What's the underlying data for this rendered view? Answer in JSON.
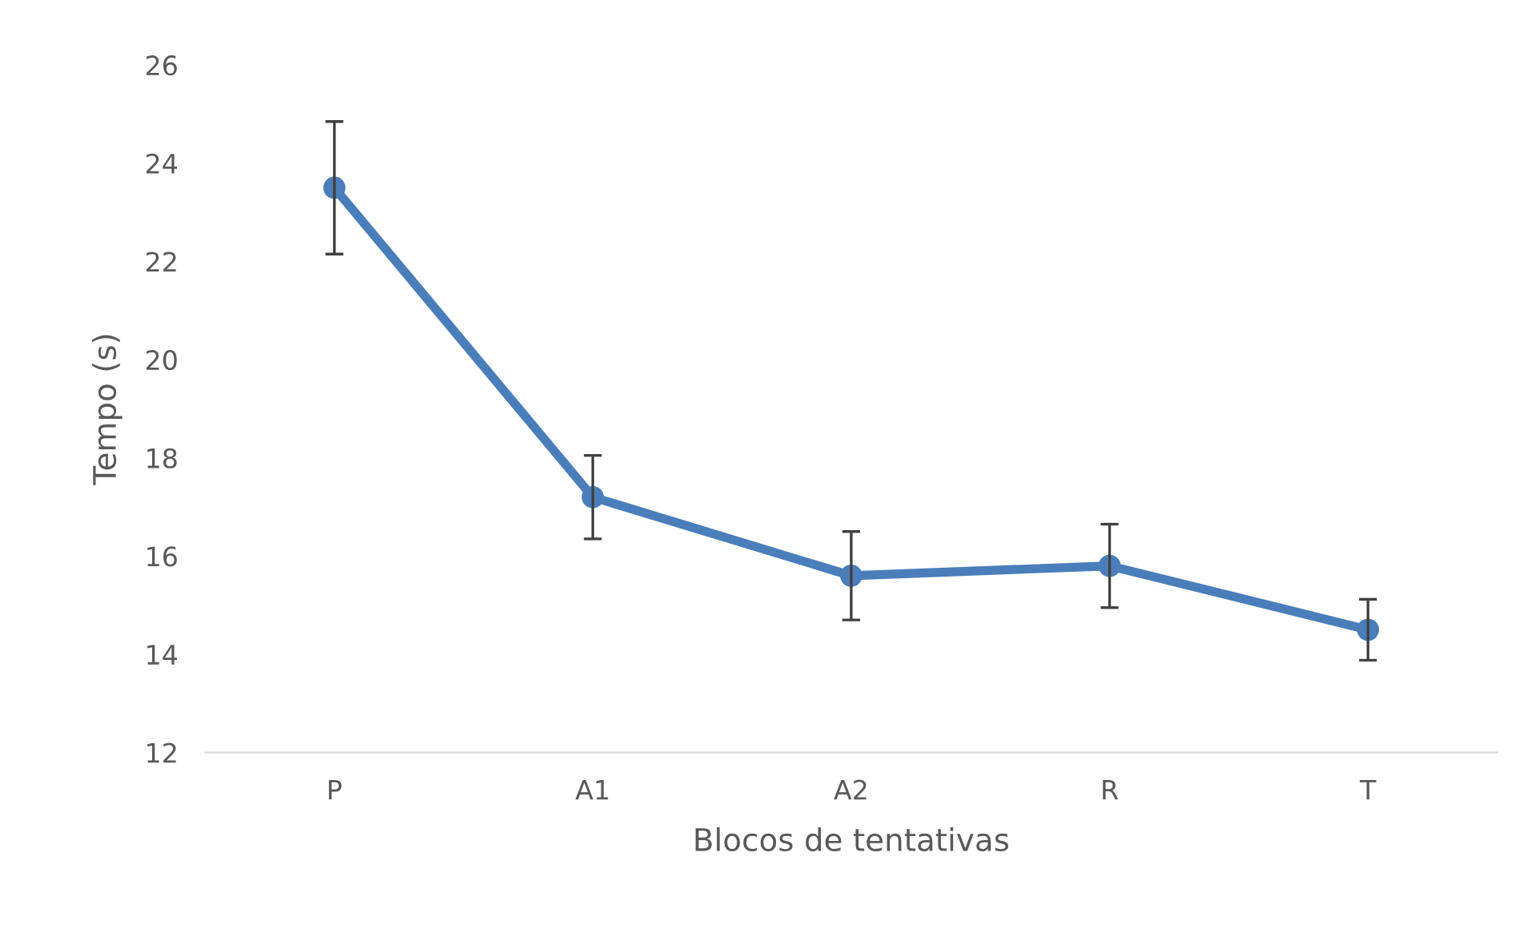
{
  "chart_data": {
    "type": "line",
    "xlabel": "Blocos de tentativas",
    "ylabel": "Tempo (s)",
    "categories": [
      "P",
      "A1",
      "A2",
      "R",
      "T"
    ],
    "series": [
      {
        "color": "#4a7ebb",
        "values": [
          23.5,
          17.2,
          15.6,
          15.8,
          14.5
        ],
        "errors": [
          1.35,
          0.85,
          0.9,
          0.85,
          0.62
        ]
      }
    ],
    "ylim": [
      12,
      26
    ],
    "yticks": [
      12,
      14,
      16,
      18,
      20,
      22,
      24,
      26
    ],
    "grid": false,
    "legend": false,
    "marker": "circle",
    "line_style": "solid"
  }
}
